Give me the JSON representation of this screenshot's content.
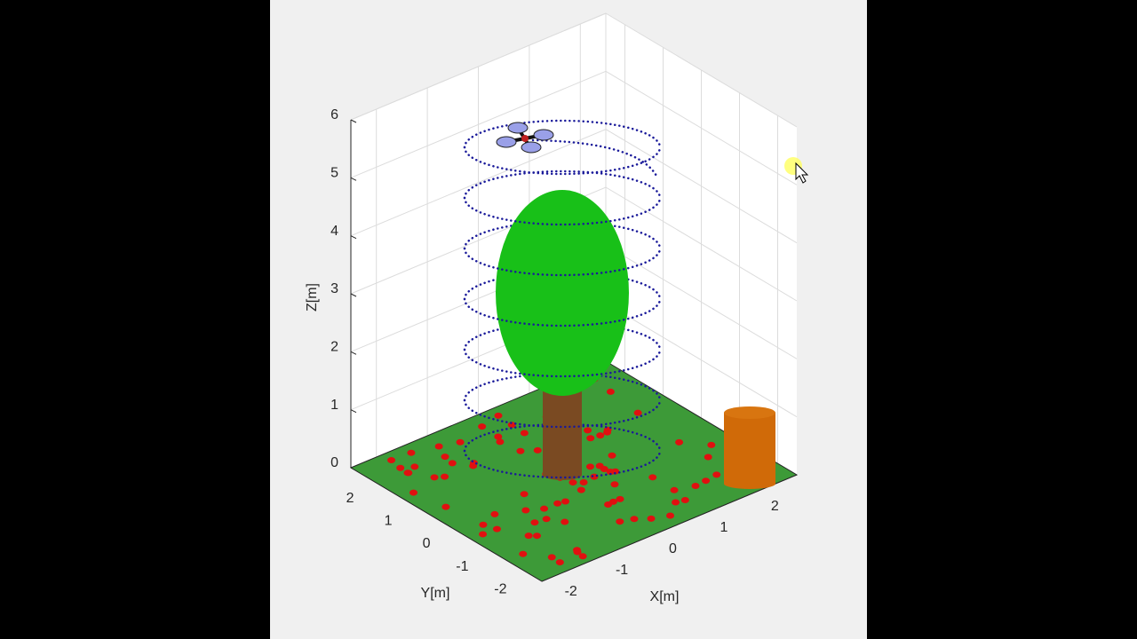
{
  "chart_data": {
    "type": "scene3d",
    "xlabel": "X[m]",
    "ylabel": "Y[m]",
    "zlabel": "Z[m]",
    "xlim": [
      -2.5,
      2.5
    ],
    "ylim": [
      -2.5,
      2.5
    ],
    "zlim": [
      0,
      6
    ],
    "xticks": [
      -2,
      -1,
      0,
      1,
      2
    ],
    "yticks": [
      -2,
      -1,
      0,
      1,
      2
    ],
    "zticks": [
      0,
      1,
      2,
      3,
      4,
      5,
      6
    ],
    "grid": true
  }
}
